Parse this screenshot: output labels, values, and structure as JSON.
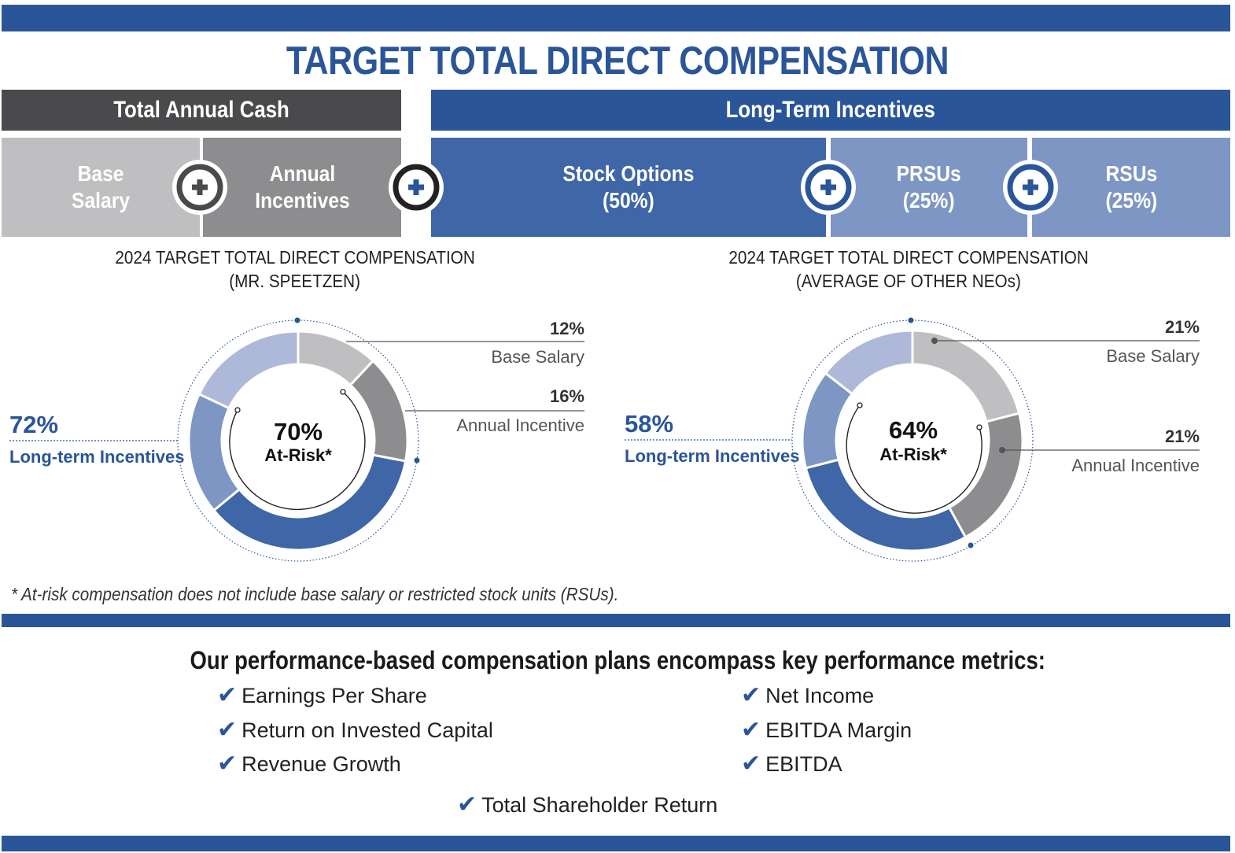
{
  "title": "TARGET TOTAL DIRECT COMPENSATION",
  "colors": {
    "brand_blue": "#2a5599",
    "dark_gray": "#4a4a4c",
    "base_salary": "#bfbfc1",
    "annual_incentive": "#8d8d90",
    "stock_options": "#3f66a6",
    "prsu": "#7d96c4",
    "rsu": "#aeb8d9"
  },
  "headers": {
    "cash": "Total Annual Cash",
    "lti": "Long-Term Incentives"
  },
  "components": [
    {
      "label": "Base\nSalary"
    },
    {
      "label": "Annual\nIncentives"
    },
    {
      "label": "Stock Options\n(50%)"
    },
    {
      "label": "PRSUs\n(25%)"
    },
    {
      "label": "RSUs\n(25%)"
    }
  ],
  "chart_data": [
    {
      "type": "pie",
      "title": "2024 TARGET TOTAL DIRECT COMPENSATION",
      "subtitle": "(MR. SPEETZEN)",
      "center_value": "70%",
      "center_label": "At-Risk*",
      "slices": [
        {
          "name": "Base Salary",
          "value": 12,
          "label": "12%"
        },
        {
          "name": "Annual Incentive",
          "value": 16,
          "label": "16%"
        },
        {
          "name": "Stock Options",
          "value": 36
        },
        {
          "name": "PRSUs",
          "value": 18
        },
        {
          "name": "RSUs",
          "value": 18
        }
      ],
      "lti_value": "72%",
      "lti_label": "Long-term Incentives"
    },
    {
      "type": "pie",
      "title": "2024 TARGET TOTAL DIRECT COMPENSATION",
      "subtitle": "(AVERAGE OF OTHER NEOs)",
      "center_value": "64%",
      "center_label": "At-Risk*",
      "slices": [
        {
          "name": "Base Salary",
          "value": 21,
          "label": "21%"
        },
        {
          "name": "Annual Incentive",
          "value": 21,
          "label": "21%"
        },
        {
          "name": "Stock Options",
          "value": 29
        },
        {
          "name": "PRSUs",
          "value": 14.5
        },
        {
          "name": "RSUs",
          "value": 14.5
        }
      ],
      "lti_value": "58%",
      "lti_label": "Long-term Incentives"
    }
  ],
  "footnote": "* At-risk compensation does not include base salary or restricted stock units (RSUs).",
  "metrics": {
    "heading": "Our performance-based compensation plans encompass key performance metrics:",
    "check": "✔",
    "left": [
      "Earnings Per Share",
      "Return on Invested Capital",
      "Revenue Growth"
    ],
    "right": [
      "Net Income",
      "EBITDA Margin",
      "EBITDA"
    ],
    "bottom": "Total Shareholder Return"
  }
}
